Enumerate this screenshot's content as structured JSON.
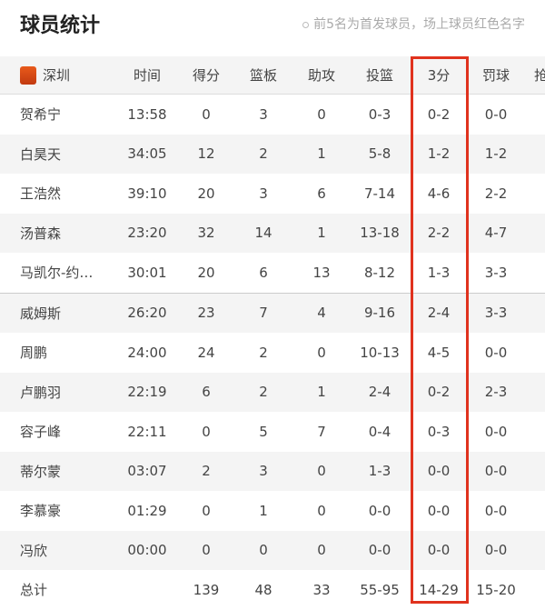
{
  "title": "球员统计",
  "note": "前5名为首发球员，场上球员红色名字",
  "team": "深圳",
  "headers": [
    "时间",
    "得分",
    "篮板",
    "助攻",
    "投篮",
    "3分",
    "罚球",
    "抢"
  ],
  "players": [
    [
      "贺希宁",
      "13:58",
      "0",
      "3",
      "0",
      "0-3",
      "0-2",
      "0-0"
    ],
    [
      "白昊天",
      "34:05",
      "12",
      "2",
      "1",
      "5-8",
      "1-2",
      "1-2"
    ],
    [
      "王浩然",
      "39:10",
      "20",
      "3",
      "6",
      "7-14",
      "4-6",
      "2-2"
    ],
    [
      "汤普森",
      "23:20",
      "32",
      "14",
      "1",
      "13-18",
      "2-2",
      "4-7"
    ],
    [
      "马凯尔-约…",
      "30:01",
      "20",
      "6",
      "13",
      "8-12",
      "1-3",
      "3-3"
    ],
    [
      "威姆斯",
      "26:20",
      "23",
      "7",
      "4",
      "9-16",
      "2-4",
      "3-3"
    ],
    [
      "周鹏",
      "24:00",
      "24",
      "2",
      "0",
      "10-13",
      "4-5",
      "0-0"
    ],
    [
      "卢鹏羽",
      "22:19",
      "6",
      "2",
      "1",
      "2-4",
      "0-2",
      "2-3"
    ],
    [
      "容子峰",
      "22:11",
      "0",
      "5",
      "7",
      "0-4",
      "0-3",
      "0-0"
    ],
    [
      "蒂尔蒙",
      "03:07",
      "2",
      "3",
      "0",
      "1-3",
      "0-0",
      "0-0"
    ],
    [
      "李慕豪",
      "01:29",
      "0",
      "1",
      "0",
      "0-0",
      "0-0",
      "0-0"
    ],
    [
      "冯欣",
      "00:00",
      "0",
      "0",
      "0",
      "0-0",
      "0-0",
      "0-0"
    ]
  ],
  "totals": [
    "总计",
    "",
    "139",
    "48",
    "33",
    "55-95",
    "14-29",
    "15-20"
  ],
  "highlight_color": "#e0321e"
}
